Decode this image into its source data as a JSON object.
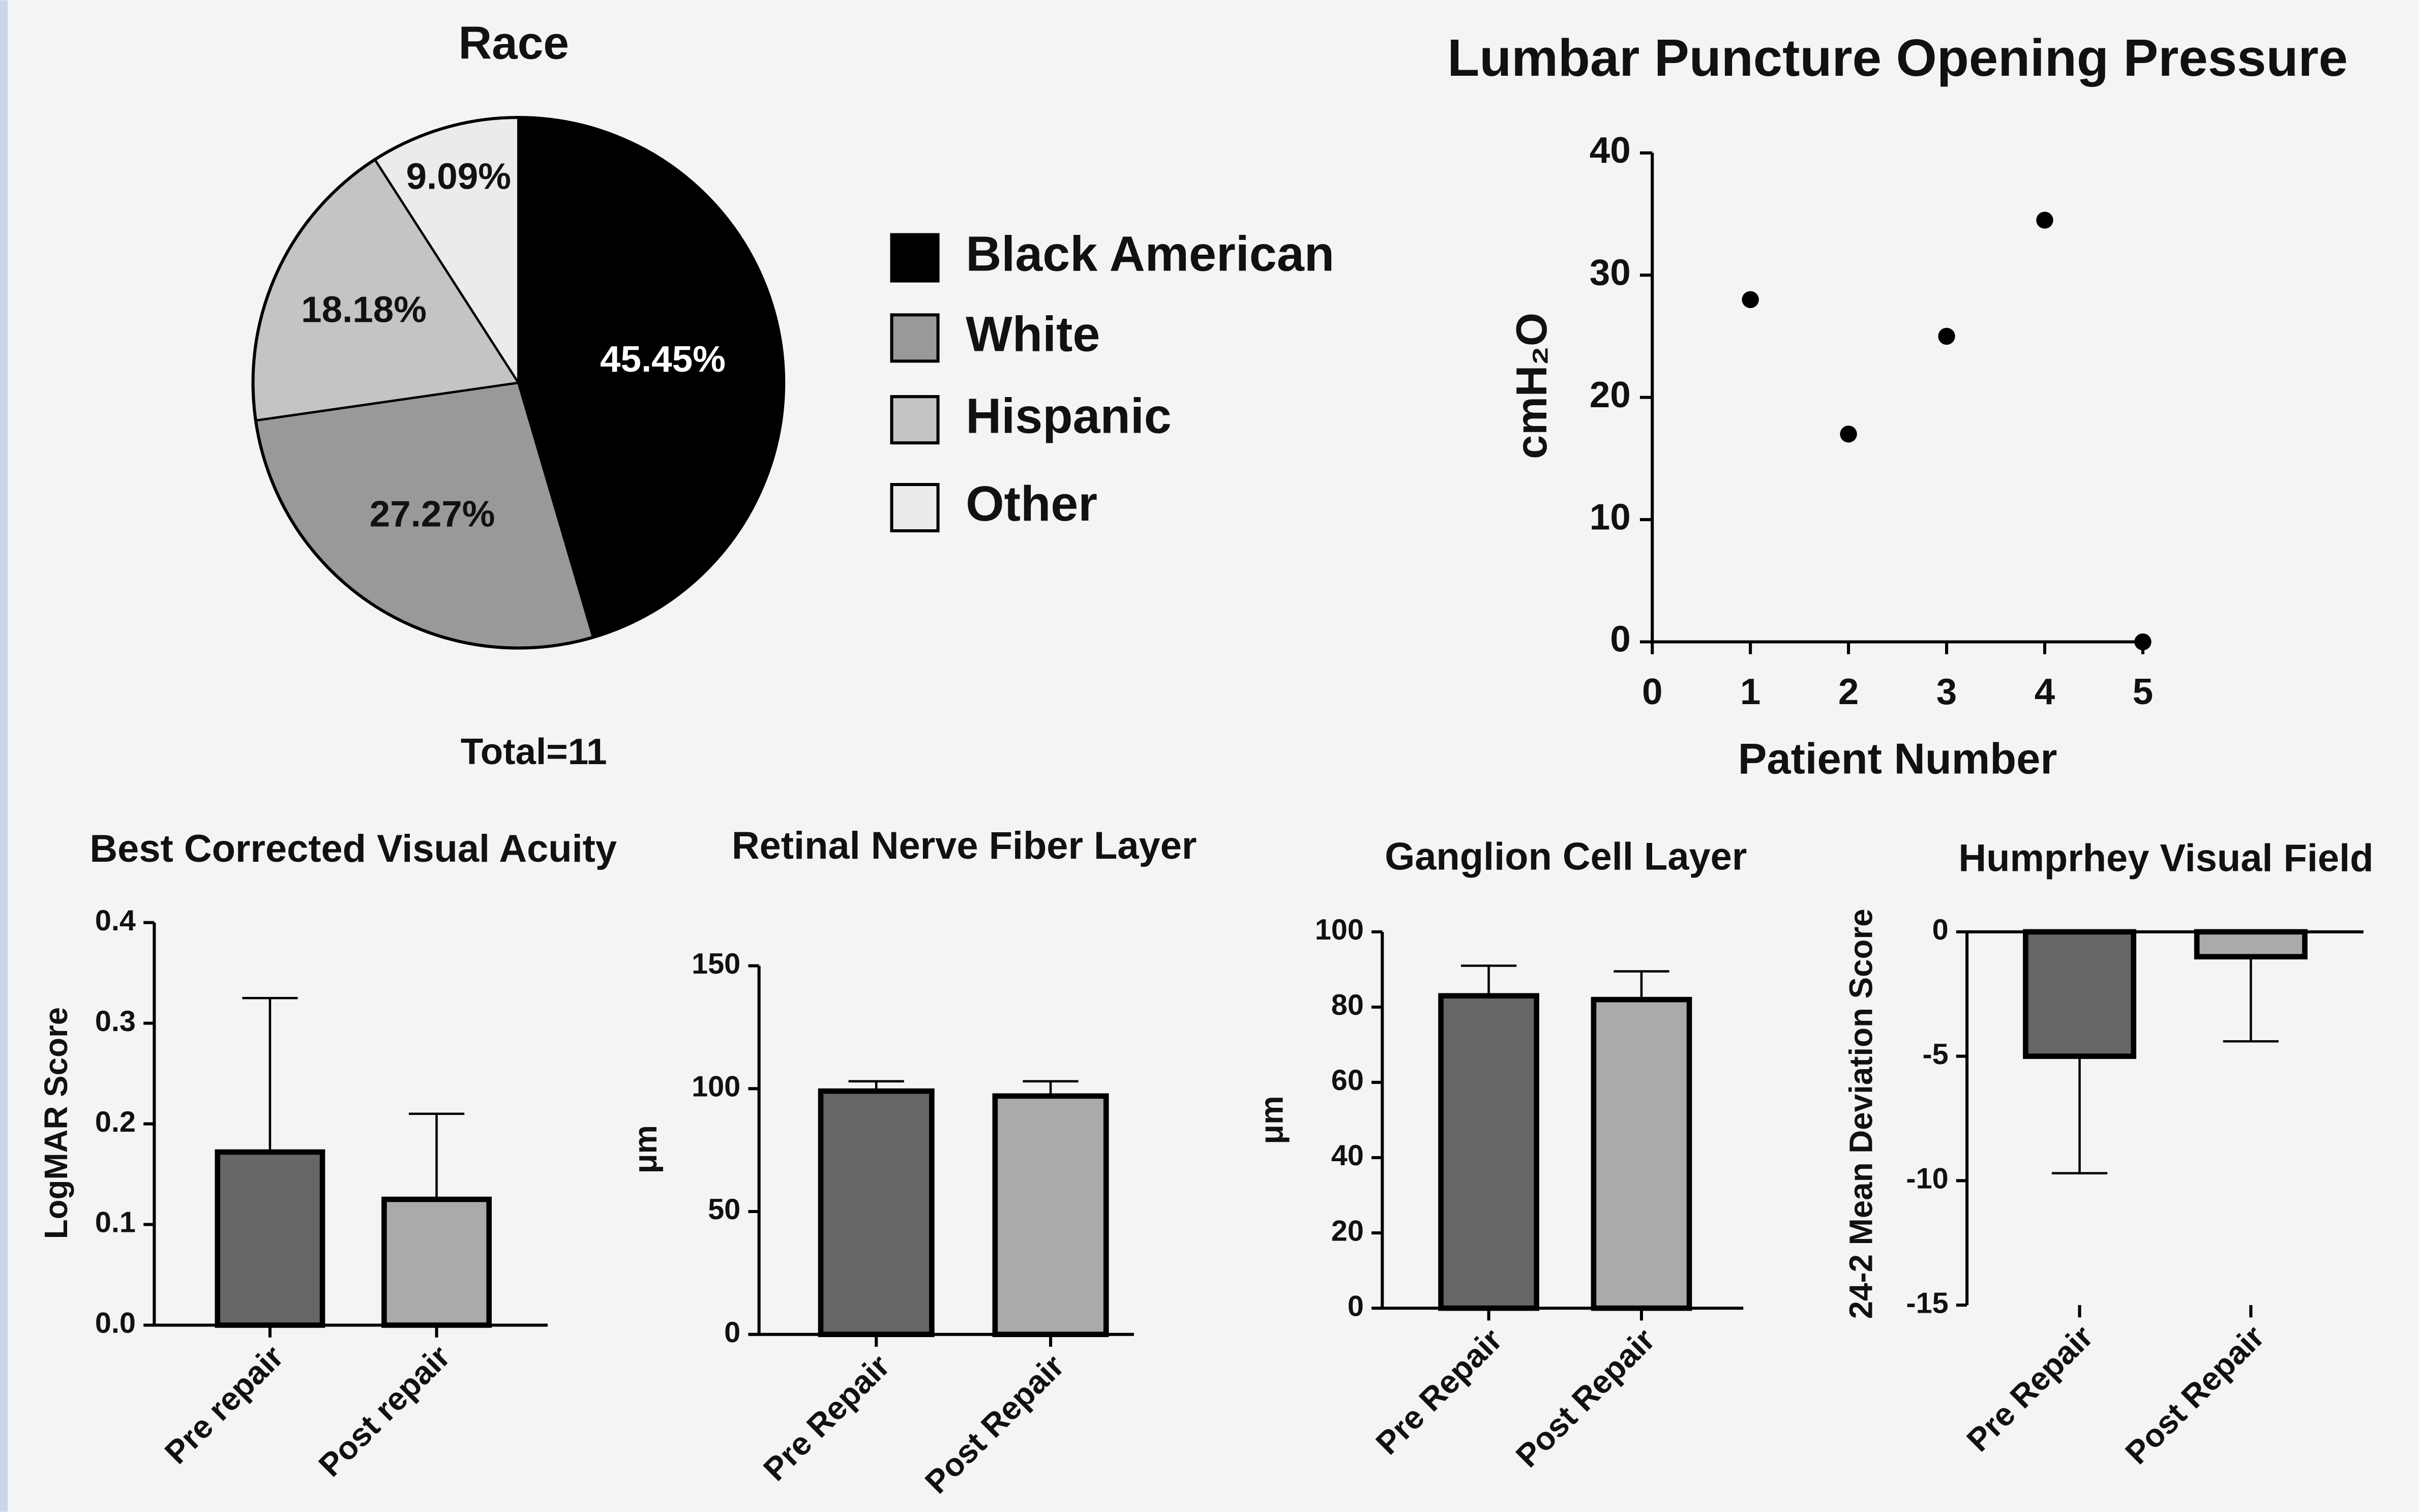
{
  "chart_data": [
    {
      "type": "pie",
      "title": "Race",
      "categories": [
        "Black American",
        "White",
        "Hispanic",
        "Other"
      ],
      "values": [
        45.45,
        27.27,
        18.18,
        9.09
      ],
      "value_labels": [
        "45.45%",
        "27.27%",
        "18.18%",
        "9.09%"
      ],
      "colors": [
        "#000000",
        "#98999b",
        "#c4c4c4",
        "#ebebeb"
      ],
      "annotation": "Total=11",
      "legend": "right"
    },
    {
      "type": "scatter",
      "title": "Lumbar Puncture Opening Pressure",
      "xlabel": "Patient Number",
      "ylabel": "cmH₂O",
      "x": [
        1,
        2,
        3,
        4,
        5
      ],
      "values": [
        28,
        17,
        25,
        34.5,
        0
      ],
      "color": "#000000",
      "xlim": [
        0,
        5
      ],
      "xticks": [
        0,
        1,
        2,
        3,
        4,
        5
      ],
      "ylim": [
        0,
        40
      ],
      "yticks": [
        0,
        10,
        20,
        30,
        40
      ]
    },
    {
      "type": "bar",
      "title": "Best Corrected Visual Acuity",
      "ylabel": "LogMAR Score",
      "categories": [
        "Pre repair",
        "Post repair"
      ],
      "values": [
        0.172,
        0.125
      ],
      "errors": [
        0.153,
        0.085
      ],
      "colors": [
        "#666666",
        "#aaaaaa"
      ],
      "ylim": [
        0,
        0.4
      ],
      "yticks": [
        {
          "value": 0,
          "label": "0.0"
        },
        0.1,
        0.2,
        0.3,
        0.4
      ]
    },
    {
      "type": "bar",
      "title": "Retinal Nerve Fiber Layer",
      "ylabel": "μm",
      "categories": [
        "Pre Repair",
        "Post Repair"
      ],
      "values": [
        99,
        97
      ],
      "errors": [
        4,
        6
      ],
      "colors": [
        "#666666",
        "#aaaaaa"
      ],
      "ylim": [
        0,
        150
      ],
      "yticks": [
        0,
        50,
        100,
        150
      ]
    },
    {
      "type": "bar",
      "title": "Ganglion Cell Layer",
      "ylabel": "μm",
      "categories": [
        "Pre Repair",
        "Post Repair"
      ],
      "values": [
        83,
        82
      ],
      "errors": [
        8,
        7.5
      ],
      "colors": [
        "#666666",
        "#aaaaaa"
      ],
      "ylim": [
        0,
        100
      ],
      "yticks": [
        0,
        20,
        40,
        60,
        80,
        100
      ]
    },
    {
      "type": "bar",
      "title": "Humprhey Visual Field",
      "ylabel": "24-2 Mean Deviation Score",
      "categories": [
        "Pre Repair",
        "Post Repair"
      ],
      "values": [
        -5,
        -1
      ],
      "errors": [
        4.7,
        3.4
      ],
      "colors": [
        "#666666",
        "#aaaaaa"
      ],
      "ylim": [
        -15,
        0
      ],
      "yticks": [
        0,
        -5,
        -10,
        -15
      ]
    }
  ]
}
